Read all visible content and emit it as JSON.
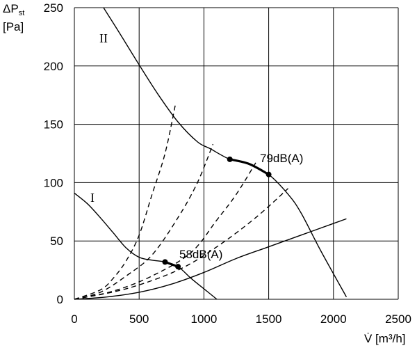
{
  "chart_data": {
    "type": "line",
    "title": "",
    "ylabel": {
      "main": "ΔP",
      "sub": "st",
      "unit": "[Pa]"
    },
    "xlabel": "V̇ [m³/h]",
    "xlim": [
      0,
      2500
    ],
    "ylim": [
      0,
      250
    ],
    "xticks": [
      0,
      500,
      1000,
      1500,
      2000,
      2500
    ],
    "yticks": [
      0,
      50,
      100,
      150,
      200,
      250
    ],
    "grid": true,
    "colors": {
      "line": "#000000",
      "grid": "#000000",
      "background": "#ffffff"
    },
    "series": [
      {
        "name": "II",
        "style": "solid",
        "x": [
          225,
          350,
          500,
          650,
          800,
          950,
          1050,
          1200,
          1350,
          1500,
          1650,
          1750,
          1900,
          2100
        ],
        "y": [
          250,
          228,
          201,
          175,
          152,
          135,
          129,
          120,
          116,
          107,
          90,
          74,
          42,
          2
        ]
      },
      {
        "name": "I",
        "style": "solid",
        "x": [
          0,
          100,
          200,
          300,
          400,
          500,
          600,
          700,
          800,
          900,
          1000,
          1100
        ],
        "y": [
          91,
          82,
          70,
          57,
          44,
          36,
          33.5,
          32,
          28,
          18,
          9,
          0
        ]
      },
      {
        "style": "solid",
        "x": [
          0,
          250,
          500,
          750,
          1000,
          1250,
          1500,
          1750,
          2000,
          2100
        ],
        "y": [
          0,
          2,
          6,
          13,
          23,
          35,
          45,
          55,
          65,
          69
        ]
      },
      {
        "style": "dashed",
        "x": [
          0,
          200,
          300,
          400,
          500,
          600,
          700,
          780
        ],
        "y": [
          0,
          8,
          18,
          33,
          55,
          90,
          125,
          167
        ]
      },
      {
        "style": "dashed",
        "x": [
          0,
          200,
          400,
          600,
          800,
          950,
          1070
        ],
        "y": [
          0,
          6,
          20,
          38,
          70,
          100,
          133
        ]
      },
      {
        "style": "dashed",
        "x": [
          0,
          300,
          600,
          900,
          1100,
          1250,
          1400
        ],
        "y": [
          0,
          7,
          20,
          40,
          68,
          90,
          117
        ]
      },
      {
        "style": "dashed",
        "x": [
          0,
          400,
          800,
          1100,
          1400,
          1650
        ],
        "y": [
          0,
          9,
          25,
          45,
          70,
          95
        ]
      }
    ],
    "operating_points": [
      {
        "label": "79dB(A)",
        "curve": "II",
        "x": [
          1200,
          1500
        ],
        "y": [
          120,
          107
        ]
      },
      {
        "label": "58dB(A)",
        "curve": "I",
        "x": [
          700,
          800
        ],
        "y": [
          32,
          28
        ]
      }
    ],
    "curve_labels": [
      "II",
      "I"
    ]
  }
}
